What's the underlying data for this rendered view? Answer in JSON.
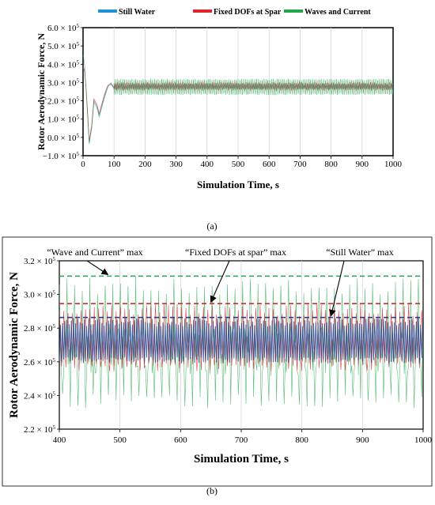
{
  "chart_data": [
    {
      "panel": "(a)",
      "type": "line",
      "xlabel": "Simulation Time, s",
      "ylabel": "Rotor Aerodynamic Force, N",
      "xlim": [
        0,
        1000
      ],
      "ylim": [
        -100000,
        600000
      ],
      "x_ticks": [
        "0",
        "100",
        "200",
        "300",
        "400",
        "500",
        "600",
        "700",
        "800",
        "900",
        "1000"
      ],
      "y_ticks": [
        {
          "base": "6.0 × 10",
          "exp": "5"
        },
        {
          "base": "5.0 × 10",
          "exp": "5"
        },
        {
          "base": "4.0 × 10",
          "exp": "5"
        },
        {
          "base": "3.0 × 10",
          "exp": "5"
        },
        {
          "base": "2.0 × 10",
          "exp": "5"
        },
        {
          "base": "1.0 × 10",
          "exp": "5"
        },
        {
          "base": "0.0 × 10",
          "exp": "5"
        },
        {
          "base": "−1.0 × 10",
          "exp": "5"
        }
      ],
      "grid": "vertical",
      "legend": "top",
      "series": [
        {
          "name": "Still Water",
          "color": "#1f8fd6",
          "transient": [
            [
              0,
              380000
            ],
            [
              5,
              360000
            ],
            [
              10,
              260000
            ],
            [
              15,
              120000
            ],
            [
              20,
              -30000
            ],
            [
              28,
              60000
            ],
            [
              35,
              200000
            ],
            [
              45,
              170000
            ],
            [
              52,
              120000
            ],
            [
              60,
              170000
            ],
            [
              70,
              230000
            ],
            [
              80,
              280000
            ],
            [
              90,
              290000
            ],
            [
              100,
              270000
            ]
          ],
          "steady": {
            "min": 263000,
            "max": 293000
          }
        },
        {
          "name": "Fixed DOFs at Spar",
          "color": "#e0262b",
          "transient": [
            [
              0,
              390000
            ],
            [
              5,
              370000
            ],
            [
              10,
              270000
            ],
            [
              15,
              130000
            ],
            [
              20,
              -20000
            ],
            [
              28,
              70000
            ],
            [
              35,
              210000
            ],
            [
              45,
              180000
            ],
            [
              52,
              130000
            ],
            [
              60,
              180000
            ],
            [
              70,
              240000
            ],
            [
              80,
              285000
            ],
            [
              90,
              295000
            ],
            [
              100,
              275000
            ]
          ],
          "steady": {
            "min": 255000,
            "max": 302000
          }
        },
        {
          "name": "Waves and Current",
          "color": "#22a84a",
          "transient": [
            [
              0,
              450000
            ],
            [
              5,
              400000
            ],
            [
              10,
              250000
            ],
            [
              15,
              100000
            ],
            [
              20,
              -35000
            ],
            [
              28,
              50000
            ],
            [
              35,
              190000
            ],
            [
              45,
              160000
            ],
            [
              52,
              110000
            ],
            [
              60,
              160000
            ],
            [
              70,
              220000
            ],
            [
              80,
              275000
            ],
            [
              90,
              300000
            ],
            [
              100,
              260000
            ]
          ],
          "steady": {
            "min": 232000,
            "max": 320000
          }
        }
      ]
    },
    {
      "panel": "(b)",
      "type": "line",
      "xlabel": "Simulation Time, s",
      "ylabel": "Rotor Aerodynamic Force, N",
      "xlim": [
        400,
        1000
      ],
      "ylim": [
        220000,
        330000
      ],
      "x_ticks": [
        "400",
        "500",
        "600",
        "700",
        "800",
        "900",
        "1000"
      ],
      "y_ticks": [
        {
          "base": "3.2 × 10",
          "exp": "5"
        },
        {
          "base": "3.0 × 10",
          "exp": "5"
        },
        {
          "base": "2.8 × 10",
          "exp": "5"
        },
        {
          "base": "2.6 × 10",
          "exp": "5"
        },
        {
          "base": "2.4 × 10",
          "exp": "5"
        },
        {
          "base": "2.2 × 10",
          "exp": "5"
        }
      ],
      "grid": "vertical",
      "series": [
        {
          "name": "Still Water",
          "color": "#1f3f8f",
          "min": 263000,
          "max": 293000,
          "max_line": 293000
        },
        {
          "name": "Fixed DOFs at Spar",
          "color": "#e0262b",
          "min": 258000,
          "max": 302000,
          "max_line": 302000
        },
        {
          "name": "Waves and Current",
          "color": "#22a84a",
          "min": 233000,
          "max": 320000,
          "max_line": 320000
        }
      ],
      "annotations": [
        {
          "text": "“Wave and Current” max",
          "target_x": 480,
          "target_y": 320000
        },
        {
          "text": "“Fixed DOFs at spar” max",
          "target_x": 650,
          "target_y": 302000
        },
        {
          "text": "“Still Water” max",
          "target_x": 848,
          "target_y": 293000
        }
      ]
    }
  ],
  "captions": {
    "a": "(a)",
    "b": "(b)"
  }
}
